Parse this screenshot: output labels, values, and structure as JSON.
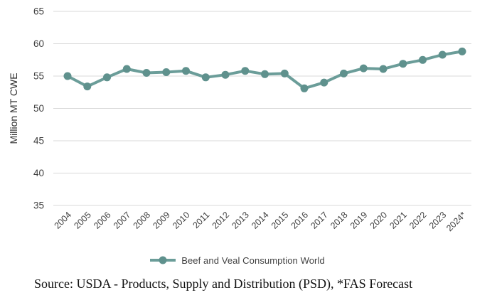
{
  "figure": {
    "source_note": "Source: USDA - Products, Supply and Distribution (PSD), *FAS Forecast"
  },
  "legend": {
    "series_label": "Beef and Veal Consumption World"
  },
  "colors": {
    "series_line": "#6B9D99",
    "series_marker": "#5F918D",
    "grid": "#D9D9D9",
    "axis_text": "#3F3F3F"
  },
  "chart_data": {
    "type": "line",
    "title": "",
    "xlabel": "",
    "ylabel": "Million MT CWE",
    "ylim": [
      35,
      65
    ],
    "ytick_step": 5,
    "grid": "horizontal",
    "legend_position": "bottom",
    "categories": [
      "2004",
      "2005",
      "2006",
      "2007",
      "2008",
      "2009",
      "2010",
      "2011",
      "2012",
      "2013",
      "2014",
      "2015",
      "2016",
      "2017",
      "2018",
      "2019",
      "2020",
      "2021",
      "2022",
      "2023",
      "2024*"
    ],
    "series": [
      {
        "name": "Beef and Veal Consumption World",
        "values": [
          55.0,
          53.4,
          54.8,
          56.1,
          55.5,
          55.6,
          55.8,
          54.8,
          55.2,
          55.8,
          55.3,
          55.4,
          53.1,
          54.0,
          55.4,
          56.2,
          56.1,
          56.9,
          57.5,
          58.3,
          58.8
        ]
      }
    ]
  }
}
